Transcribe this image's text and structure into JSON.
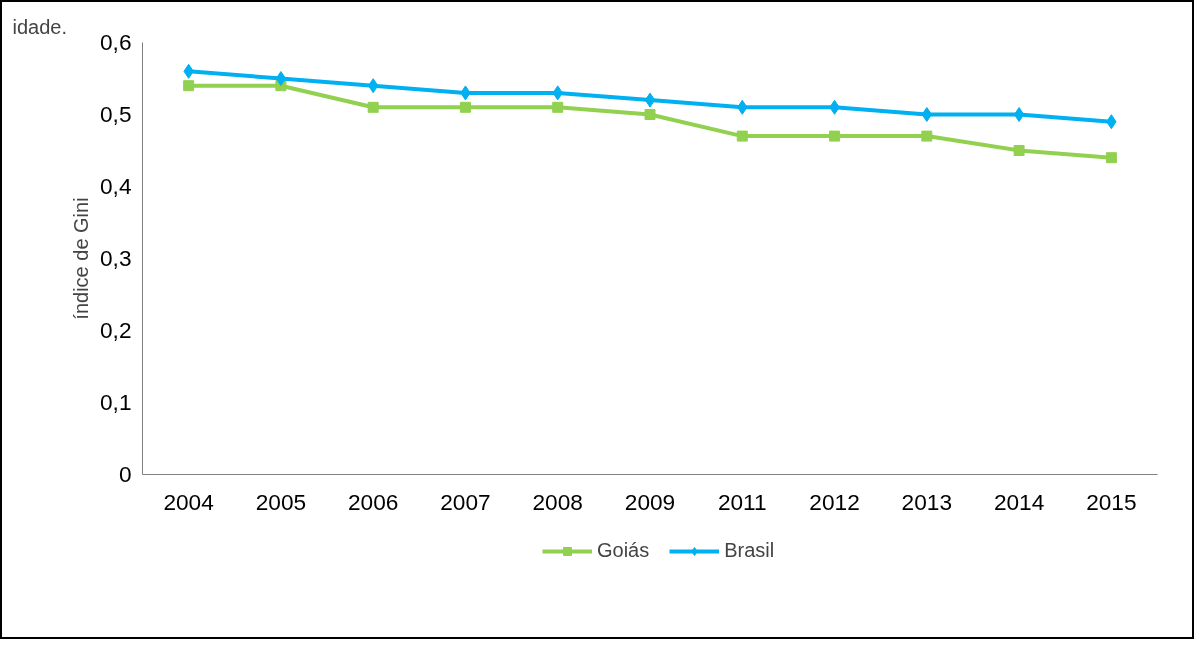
{
  "chart_data": {
    "type": "line",
    "ylabel": "índice de Gini",
    "annotations": [
      "idade."
    ],
    "categories": [
      "2004",
      "2005",
      "2006",
      "2007",
      "2008",
      "2009",
      "2011",
      "2012",
      "2013",
      "2014",
      "2015"
    ],
    "series": [
      {
        "name": "Goiás",
        "color": "#92d050",
        "marker": "square",
        "values": [
          0.54,
          0.54,
          0.51,
          0.51,
          0.51,
          0.5,
          0.47,
          0.47,
          0.47,
          0.45,
          0.44
        ]
      },
      {
        "name": "Brasil",
        "color": "#00b0f0",
        "marker": "diamond",
        "values": [
          0.56,
          0.55,
          0.54,
          0.53,
          0.53,
          0.52,
          0.51,
          0.51,
          0.5,
          0.5,
          0.49
        ]
      }
    ],
    "ylim": [
      0,
      0.6
    ],
    "yticks": [
      {
        "value": 0,
        "label": "0"
      },
      {
        "value": 0.1,
        "label": "0,1"
      },
      {
        "value": 0.2,
        "label": "0,2"
      },
      {
        "value": 0.3,
        "label": "0,3"
      },
      {
        "value": 0.4,
        "label": "0,4"
      },
      {
        "value": 0.5,
        "label": "0,5"
      },
      {
        "value": 0.6,
        "label": "0,6"
      }
    ],
    "grid": false,
    "legend": "bottom",
    "line_style": "solid"
  }
}
